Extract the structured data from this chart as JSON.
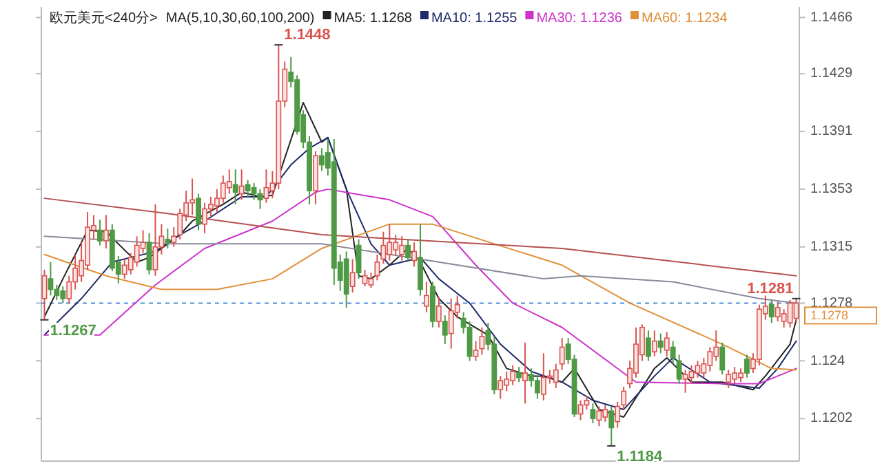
{
  "chart_data": {
    "type": "candlestick",
    "title": "欧元美元<240分>",
    "subtitle": "MA(5,10,30,60,100,200)",
    "categories": [
      null,
      null,
      null,
      null,
      null,
      null,
      null,
      null,
      null,
      null,
      null,
      null,
      null,
      null,
      null,
      null,
      null,
      null,
      null,
      null,
      null,
      null,
      null,
      null,
      null,
      null,
      null,
      null,
      null,
      null,
      null,
      null,
      null,
      null,
      null,
      null,
      null,
      null,
      null,
      null,
      null,
      null,
      null,
      null,
      null,
      null,
      null,
      null,
      null,
      null,
      null,
      null,
      null,
      null,
      null,
      null,
      null,
      null,
      null,
      null,
      null,
      null,
      null,
      null,
      null,
      null,
      null,
      null,
      null,
      null,
      null,
      null,
      null,
      null,
      null,
      null,
      null,
      null,
      null,
      null,
      null,
      null,
      null,
      null,
      null,
      null,
      null,
      null,
      null,
      null,
      null,
      null,
      null,
      null,
      null,
      null,
      null,
      null,
      null,
      null,
      null,
      null,
      null,
      null,
      null,
      null,
      null,
      null,
      null,
      null,
      null,
      null,
      null,
      null,
      null,
      null,
      null,
      null,
      null,
      null,
      null,
      null,
      null
    ],
    "ohlc": [
      [
        1.1281,
        1.13,
        1.1267,
        1.1296
      ],
      [
        1.1294,
        1.1305,
        1.1283,
        1.1287
      ],
      [
        1.1287,
        1.129,
        1.128,
        1.1283
      ],
      [
        1.1286,
        1.1289,
        1.1278,
        1.1281
      ],
      [
        1.1281,
        1.1296,
        1.1278,
        1.1292
      ],
      [
        1.1292,
        1.131,
        1.1287,
        1.1301
      ],
      [
        1.1296,
        1.1318,
        1.1292,
        1.1306
      ],
      [
        1.1303,
        1.1338,
        1.13,
        1.1328
      ],
      [
        1.1326,
        1.1336,
        1.132,
        1.1329
      ],
      [
        1.1326,
        1.1333,
        1.1316,
        1.1319
      ],
      [
        1.1319,
        1.1336,
        1.1314,
        1.1326
      ],
      [
        1.1326,
        1.133,
        1.1299,
        1.1301
      ],
      [
        1.1305,
        1.1309,
        1.1291,
        1.1297
      ],
      [
        1.1297,
        1.1307,
        1.1294,
        1.1303
      ],
      [
        1.13,
        1.1311,
        1.1297,
        1.1308
      ],
      [
        1.1305,
        1.1322,
        1.1302,
        1.1316
      ],
      [
        1.1314,
        1.1326,
        1.1311,
        1.1318
      ],
      [
        1.1318,
        1.1324,
        1.1297,
        1.13
      ],
      [
        1.13,
        1.1343,
        1.1296,
        1.1315
      ],
      [
        1.1315,
        1.133,
        1.131,
        1.1322
      ],
      [
        1.132,
        1.1327,
        1.1314,
        1.1318
      ],
      [
        1.1318,
        1.1328,
        1.1315,
        1.1322
      ],
      [
        1.1323,
        1.134,
        1.132,
        1.1337
      ],
      [
        1.1336,
        1.1352,
        1.1332,
        1.1344
      ],
      [
        1.1344,
        1.136,
        1.1336,
        1.1346
      ],
      [
        1.1347,
        1.135,
        1.1326,
        1.133
      ],
      [
        1.133,
        1.1344,
        1.1324,
        1.134
      ],
      [
        1.134,
        1.1348,
        1.1335,
        1.1343
      ],
      [
        1.1342,
        1.1353,
        1.1338,
        1.1347
      ],
      [
        1.1347,
        1.1362,
        1.1344,
        1.1357
      ],
      [
        1.1354,
        1.1366,
        1.135,
        1.1358
      ],
      [
        1.1356,
        1.1366,
        1.1343,
        1.1351
      ],
      [
        1.135,
        1.1366,
        1.1346,
        1.1355
      ],
      [
        1.1356,
        1.1359,
        1.1348,
        1.1352
      ],
      [
        1.1354,
        1.1357,
        1.1346,
        1.135
      ],
      [
        1.135,
        1.1353,
        1.134,
        1.1346
      ],
      [
        1.1347,
        1.1366,
        1.1344,
        1.1354
      ],
      [
        1.1352,
        1.1365,
        1.1347,
        1.1357
      ],
      [
        1.1357,
        1.1448,
        1.1353,
        1.1411
      ],
      [
        1.1411,
        1.1437,
        1.1407,
        1.1432
      ],
      [
        1.143,
        1.144,
        1.142,
        1.1424
      ],
      [
        1.1425,
        1.1428,
        1.1389,
        1.1391
      ],
      [
        1.1402,
        1.1405,
        1.138,
        1.1384
      ],
      [
        1.1384,
        1.1388,
        1.1343,
        1.1352
      ],
      [
        1.1352,
        1.1378,
        1.1343,
        1.1375
      ],
      [
        1.1375,
        1.138,
        1.1365,
        1.1369
      ],
      [
        1.1377,
        1.1386,
        1.1362,
        1.1367
      ],
      [
        1.1371,
        1.1386,
        1.129,
        1.1301
      ],
      [
        1.1305,
        1.131,
        1.1286,
        1.1293
      ],
      [
        1.1307,
        1.1312,
        1.1275,
        1.1284
      ],
      [
        1.1289,
        1.1307,
        1.1285,
        1.1298
      ],
      [
        1.1316,
        1.132,
        1.1294,
        1.1298
      ],
      [
        1.1291,
        1.13,
        1.1289,
        1.1296
      ],
      [
        1.129,
        1.1298,
        1.1288,
        1.1294
      ],
      [
        1.1296,
        1.131,
        1.1293,
        1.1305
      ],
      [
        1.1307,
        1.1325,
        1.1304,
        1.1316
      ],
      [
        1.131,
        1.133,
        1.1306,
        1.1318
      ],
      [
        1.1313,
        1.1323,
        1.1309,
        1.1318
      ],
      [
        1.131,
        1.1322,
        1.1306,
        1.1316
      ],
      [
        1.1316,
        1.132,
        1.1305,
        1.1308
      ],
      [
        1.1306,
        1.1318,
        1.1302,
        1.1312
      ],
      [
        1.1308,
        1.133,
        1.1283,
        1.1287
      ],
      [
        1.1276,
        1.1292,
        1.1272,
        1.1283
      ],
      [
        1.1289,
        1.1292,
        1.1262,
        1.1266
      ],
      [
        1.1266,
        1.1282,
        1.1262,
        1.1276
      ],
      [
        1.1266,
        1.127,
        1.1251,
        1.1257
      ],
      [
        1.1258,
        1.1281,
        1.1248,
        1.1273
      ],
      [
        1.1272,
        1.1283,
        1.1268,
        1.1277
      ],
      [
        1.1268,
        1.1272,
        1.1258,
        1.1262
      ],
      [
        1.1262,
        1.1266,
        1.124,
        1.1243
      ],
      [
        1.1243,
        1.1253,
        1.124,
        1.1247
      ],
      [
        1.1248,
        1.1262,
        1.1244,
        1.1256
      ],
      [
        1.126,
        1.1265,
        1.1247,
        1.1251
      ],
      [
        1.1251,
        1.1256,
        1.1218,
        1.1221
      ],
      [
        1.1221,
        1.123,
        1.1215,
        1.1227
      ],
      [
        1.1224,
        1.1233,
        1.122,
        1.1228
      ],
      [
        1.1227,
        1.1237,
        1.1224,
        1.1233
      ],
      [
        1.1232,
        1.1236,
        1.1226,
        1.1229
      ],
      [
        1.1227,
        1.1252,
        1.1212,
        1.1232
      ],
      [
        1.1231,
        1.1235,
        1.1223,
        1.1227
      ],
      [
        1.1227,
        1.123,
        1.1215,
        1.1219
      ],
      [
        1.1218,
        1.1245,
        1.1214,
        1.1229
      ],
      [
        1.1229,
        1.1234,
        1.1225,
        1.123
      ],
      [
        1.1226,
        1.1238,
        1.1222,
        1.1234
      ],
      [
        1.1238,
        1.1255,
        1.1234,
        1.1249
      ],
      [
        1.1251,
        1.1255,
        1.1238,
        1.1241
      ],
      [
        1.1241,
        1.1244,
        1.1203,
        1.1205
      ],
      [
        1.1205,
        1.1214,
        1.1201,
        1.1211
      ],
      [
        1.1211,
        1.1217,
        1.1208,
        1.1214
      ],
      [
        1.1208,
        1.1212,
        1.1199,
        1.1202
      ],
      [
        1.1201,
        1.121,
        1.1197,
        1.1207
      ],
      [
        1.1203,
        1.1211,
        1.12,
        1.1208
      ],
      [
        1.1207,
        1.121,
        1.1184,
        1.1196
      ],
      [
        1.12,
        1.1213,
        1.1196,
        1.121
      ],
      [
        1.1211,
        1.1223,
        1.1208,
        1.122
      ],
      [
        1.1225,
        1.124,
        1.1222,
        1.1235
      ],
      [
        1.1232,
        1.1262,
        1.1229,
        1.1251
      ],
      [
        1.1244,
        1.1264,
        1.124,
        1.1262
      ],
      [
        1.1255,
        1.126,
        1.124,
        1.1243
      ],
      [
        1.1246,
        1.126,
        1.1243,
        1.1253
      ],
      [
        1.1253,
        1.1258,
        1.1245,
        1.1249
      ],
      [
        1.1247,
        1.1259,
        1.1243,
        1.1255
      ],
      [
        1.1249,
        1.1253,
        1.1238,
        1.1242
      ],
      [
        1.124,
        1.1244,
        1.1225,
        1.1228
      ],
      [
        1.1228,
        1.1234,
        1.1219,
        1.1231
      ],
      [
        1.1229,
        1.1237,
        1.1225,
        1.1233
      ],
      [
        1.1232,
        1.124,
        1.1229,
        1.1237
      ],
      [
        1.1232,
        1.1242,
        1.1229,
        1.1238
      ],
      [
        1.1237,
        1.1249,
        1.1233,
        1.1246
      ],
      [
        1.1243,
        1.126,
        1.124,
        1.1249
      ],
      [
        1.1249,
        1.1252,
        1.1231,
        1.1234
      ],
      [
        1.1226,
        1.1234,
        1.1222,
        1.1231
      ],
      [
        1.1228,
        1.1236,
        1.1225,
        1.1232
      ],
      [
        1.1229,
        1.1235,
        1.1226,
        1.1232
      ],
      [
        1.1241,
        1.1244,
        1.1229,
        1.1232
      ],
      [
        1.1235,
        1.1245,
        1.1232,
        1.1241
      ],
      [
        1.1241,
        1.1277,
        1.1237,
        1.1274
      ],
      [
        1.1271,
        1.1283,
        1.1267,
        1.1276
      ],
      [
        1.1277,
        1.128,
        1.1265,
        1.1269
      ],
      [
        1.1269,
        1.1279,
        1.1266,
        1.1275
      ],
      [
        1.1266,
        1.1274,
        1.1262,
        1.1271
      ],
      [
        1.1265,
        1.128,
        1.1262,
        1.1278
      ],
      [
        1.1268,
        1.1281,
        1.1265,
        1.1278
      ]
    ],
    "series": [
      {
        "type": "line",
        "name": "MA5: 1.1268",
        "color": "#222222",
        "values": [
          1.1269,
          null,
          null,
          1.1294,
          null,
          null,
          null,
          1.1326,
          null,
          null,
          1.1325,
          null,
          null,
          null,
          null,
          1.1305,
          null,
          1.1308,
          null,
          null,
          null,
          null,
          1.1323,
          null,
          1.1332,
          null,
          null,
          null,
          null,
          1.1343,
          null,
          null,
          1.1351,
          null,
          null,
          1.1348,
          null,
          1.1349,
          null,
          null,
          null,
          null,
          1.141,
          null,
          null,
          1.1384,
          1.1387,
          null,
          null,
          1.1353,
          null,
          1.1296,
          null,
          1.1294,
          null,
          null,
          1.1303,
          null,
          null,
          1.1314,
          null,
          1.1305,
          null,
          null,
          1.1281,
          null,
          null,
          1.1269,
          null,
          null,
          null,
          null,
          1.1257,
          null,
          null,
          1.1235,
          null,
          null,
          null,
          1.123,
          null,
          1.123,
          null,
          null,
          1.1226,
          null,
          1.1235,
          null,
          null,
          null,
          1.1208,
          null,
          null,
          null,
          1.1203,
          null,
          null,
          null,
          null,
          1.1235,
          null,
          1.1242,
          null,
          null,
          null,
          1.1226,
          null,
          null,
          null,
          null,
          1.1226,
          null,
          null,
          null,
          null,
          1.1221,
          null,
          1.123,
          null,
          null,
          null,
          1.1251,
          1.1267
        ]
      },
      {
        "type": "line",
        "name": "MA10: 1.1255",
        "color": "#1f2a6b",
        "values": [
          1.1257,
          null,
          null,
          null,
          null,
          null,
          1.1281,
          null,
          null,
          null,
          null,
          1.1305,
          null,
          null,
          null,
          null,
          null,
          null,
          1.1312,
          null,
          null,
          null,
          1.1323,
          null,
          null,
          null,
          1.1332,
          null,
          null,
          null,
          null,
          null,
          1.1348,
          null,
          null,
          null,
          1.1348,
          null,
          null,
          null,
          1.1369,
          null,
          null,
          1.138,
          null,
          null,
          1.1387,
          null,
          null,
          1.1353,
          null,
          null,
          null,
          1.1317,
          null,
          null,
          1.1303,
          null,
          null,
          null,
          null,
          1.1308,
          null,
          null,
          1.1294,
          null,
          null,
          null,
          null,
          1.1278,
          null,
          null,
          null,
          null,
          1.1251,
          null,
          null,
          null,
          null,
          1.1233,
          null,
          null,
          null,
          null,
          1.1226,
          null,
          null,
          null,
          null,
          1.1214,
          null,
          null,
          null,
          null,
          1.1208,
          null,
          null,
          null,
          null,
          1.123,
          null,
          null,
          1.1242,
          null,
          null,
          null,
          null,
          null,
          1.1226,
          null,
          null,
          null,
          1.1224,
          null,
          null,
          null,
          1.1222,
          null,
          null,
          1.1235,
          null,
          null,
          1.1253
        ]
      },
      {
        "type": "line",
        "name": "MA30: 1.1236",
        "color": "#cc33cc",
        "values": [
          1.1257,
          null,
          null,
          null,
          null,
          null,
          null,
          null,
          null,
          1.1257,
          null,
          null,
          null,
          null,
          null,
          null,
          null,
          null,
          1.129,
          null,
          null,
          null,
          null,
          null,
          null,
          null,
          1.1314,
          null,
          null,
          null,
          null,
          null,
          null,
          null,
          null,
          null,
          null,
          1.1332,
          null,
          null,
          null,
          null,
          null,
          null,
          1.1351,
          null,
          1.1353,
          null,
          null,
          null,
          null,
          null,
          null,
          null,
          null,
          null,
          1.1346,
          null,
          null,
          null,
          null,
          null,
          null,
          1.1335,
          null,
          null,
          null,
          null,
          null,
          null,
          1.1303,
          null,
          null,
          null,
          null,
          null,
          1.1278,
          null,
          null,
          null,
          null,
          null,
          null,
          null,
          1.1262,
          null,
          null,
          null,
          null,
          null,
          null,
          null,
          null,
          null,
          null,
          null,
          1.1226,
          null,
          null,
          null,
          null,
          null,
          null,
          null,
          null,
          null,
          null,
          null,
          null,
          null,
          1.1225,
          null,
          null,
          null,
          null,
          null,
          1.1225,
          null,
          null,
          null,
          null,
          null,
          1.1235
        ]
      },
      {
        "type": "line",
        "name": "MA60: 1.1234",
        "color": "#e0903a",
        "values": [
          1.131,
          null,
          null,
          null,
          null,
          null,
          null,
          null,
          null,
          null,
          1.1296,
          null,
          null,
          null,
          null,
          null,
          null,
          null,
          null,
          1.1287,
          null,
          null,
          null,
          null,
          null,
          null,
          null,
          null,
          1.1287,
          null,
          null,
          null,
          null,
          null,
          null,
          null,
          null,
          1.1294,
          null,
          null,
          null,
          null,
          null,
          null,
          null,
          1.1314,
          null,
          null,
          null,
          null,
          null,
          null,
          null,
          null,
          null,
          null,
          1.133,
          null,
          null,
          null,
          null,
          null,
          null,
          1.133,
          null,
          null,
          null,
          null,
          null,
          null,
          null,
          null,
          null,
          1.1317,
          null,
          null,
          null,
          null,
          null,
          null,
          null,
          null,
          null,
          null,
          1.1303,
          null,
          null,
          null,
          null,
          null,
          null,
          null,
          null,
          null,
          null,
          1.1278,
          null,
          null,
          null,
          null,
          null,
          null,
          null,
          null,
          null,
          null,
          null,
          null,
          null,
          null,
          1.1251,
          null,
          null,
          null,
          null,
          null,
          null,
          null,
          1.1235,
          null,
          null,
          null,
          1.1234
        ]
      },
      {
        "type": "line",
        "color": "#8a8a9a",
        "values": [
          1.1322,
          null,
          null,
          null,
          null,
          null,
          null,
          null,
          null,
          null,
          null,
          null,
          null,
          null,
          null,
          null,
          null,
          null,
          null,
          null,
          1.1317,
          null,
          null,
          null,
          null,
          null,
          null,
          null,
          null,
          null,
          null,
          null,
          null,
          null,
          null,
          null,
          null,
          null,
          null,
          null,
          null,
          null,
          null,
          null,
          null,
          1.1317,
          null,
          null,
          null,
          null,
          null,
          null,
          null,
          null,
          null,
          null,
          null,
          null,
          null,
          null,
          null,
          1.1307,
          null,
          null,
          null,
          null,
          null,
          null,
          null,
          null,
          null,
          null,
          null,
          null,
          null,
          null,
          null,
          null,
          null,
          null,
          null,
          1.1294,
          null,
          null,
          null,
          null,
          null,
          1.1296,
          null,
          null,
          null,
          null,
          null,
          null,
          null,
          null,
          null,
          null,
          null,
          null,
          null,
          null,
          1.1292,
          null,
          null,
          null,
          null,
          null,
          null,
          null,
          null,
          null,
          null,
          null,
          null,
          null,
          1.1281,
          null,
          null,
          null,
          null,
          null,
          1.1278
        ]
      },
      {
        "type": "line",
        "color": "#b55050",
        "values": [
          1.1347,
          null,
          null,
          null,
          null,
          null,
          null,
          null,
          null,
          null,
          null,
          null,
          null,
          null,
          null,
          null,
          null,
          null,
          null,
          null,
          1.1337,
          null,
          null,
          null,
          null,
          null,
          null,
          null,
          null,
          null,
          null,
          null,
          null,
          null,
          null,
          null,
          null,
          null,
          null,
          null,
          null,
          null,
          null,
          null,
          null,
          1.1323,
          null,
          null,
          null,
          null,
          null,
          null,
          null,
          null,
          null,
          null,
          null,
          null,
          null,
          null,
          null,
          null,
          null,
          null,
          null,
          null,
          null,
          null,
          null,
          null,
          null,
          null,
          null,
          null,
          null,
          null,
          null,
          null,
          null,
          null,
          null,
          null,
          null,
          null,
          1.1314,
          null,
          null,
          null,
          null,
          null,
          null,
          null,
          null,
          null,
          null,
          null,
          null,
          null,
          null,
          null,
          null,
          null,
          null,
          null,
          null,
          null,
          null,
          null,
          null,
          null,
          null,
          null,
          null,
          null,
          null,
          null,
          null,
          null,
          null,
          null,
          null,
          null,
          1.1296
        ]
      }
    ],
    "ylim": [
      1.1174,
      1.1473
    ],
    "yticks": [
      1.1466,
      1.1429,
      1.1391,
      1.1353,
      1.1315,
      1.1278,
      1.124,
      1.1202
    ],
    "ref_lines": [
      {
        "axis": "y",
        "value": 1.1278,
        "label": "1.1278",
        "color": "#4a90d9",
        "line_style": "dashed"
      }
    ],
    "annotations": [
      "1.1448",
      "1.1267",
      "1.1184",
      "1.1281"
    ],
    "legend": "top"
  }
}
